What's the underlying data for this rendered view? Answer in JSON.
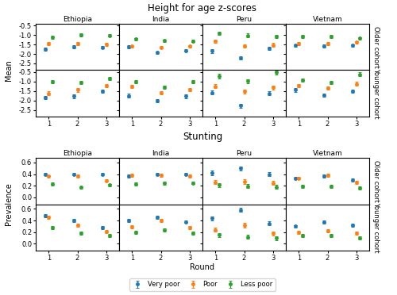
{
  "chart_data": [
    {
      "type": "errorbar",
      "title": "Height for age z-scores",
      "ylabel": "Mean",
      "x": [
        1,
        2,
        3
      ],
      "xlim": [
        0.55,
        3.45
      ],
      "xticks": [
        1,
        2,
        3
      ],
      "ylim": [
        -2.85,
        -0.4
      ],
      "yticks": [
        -2.5,
        {
          "value": -2.0,
          "label": "-2.0"
        },
        -1.5,
        {
          "value": -1.0,
          "label": "-1.0"
        },
        -0.5
      ],
      "grid": false,
      "columns": [
        "Ethiopia",
        "India",
        "Peru",
        "Vietnam"
      ],
      "rows": [
        "Older cohort",
        "Younger cohort"
      ],
      "panels": [
        {
          "row": "Older cohort",
          "column": "Ethiopia",
          "series": [
            {
              "name": "Very poor",
              "values": [
                -1.75,
                -1.62,
                -1.65
              ],
              "yerr": [
                0.07,
                0.07,
                0.07
              ]
            },
            {
              "name": "Poor",
              "values": [
                -1.45,
                -1.45,
                -1.5
              ],
              "yerr": [
                0.07,
                0.07,
                0.07
              ]
            },
            {
              "name": "Less poor",
              "values": [
                -1.12,
                -1.0,
                -1.02
              ],
              "yerr": [
                0.07,
                0.07,
                0.07
              ]
            }
          ]
        },
        {
          "row": "Older cohort",
          "column": "India",
          "series": [
            {
              "name": "Very poor",
              "values": [
                -1.62,
                -1.93,
                -1.82
              ],
              "yerr": [
                0.07,
                0.07,
                0.07
              ]
            },
            {
              "name": "Poor",
              "values": [
                -1.6,
                -1.65,
                -1.6
              ],
              "yerr": [
                0.07,
                0.07,
                0.07
              ]
            },
            {
              "name": "Less poor",
              "values": [
                -1.22,
                -1.3,
                -1.32
              ],
              "yerr": [
                0.07,
                0.07,
                0.07
              ]
            }
          ]
        },
        {
          "row": "Older cohort",
          "column": "Peru",
          "series": [
            {
              "name": "Very poor",
              "values": [
                -1.85,
                -2.22,
                -1.72
              ],
              "yerr": [
                0.09,
                0.09,
                0.09
              ]
            },
            {
              "name": "Poor",
              "values": [
                -1.32,
                -1.58,
                -1.52
              ],
              "yerr": [
                0.09,
                0.09,
                0.09
              ]
            },
            {
              "name": "Less poor",
              "values": [
                -0.92,
                -1.02,
                -1.08
              ],
              "yerr": [
                0.09,
                0.09,
                0.09
              ]
            }
          ]
        },
        {
          "row": "Older cohort",
          "column": "Vietnam",
          "series": [
            {
              "name": "Very poor",
              "values": [
                -1.55,
                -1.58,
                -1.55
              ],
              "yerr": [
                0.07,
                0.07,
                0.07
              ]
            },
            {
              "name": "Poor",
              "values": [
                -1.45,
                -1.45,
                -1.38
              ],
              "yerr": [
                0.07,
                0.07,
                0.07
              ]
            },
            {
              "name": "Less poor",
              "values": [
                -1.08,
                -1.08,
                -1.18
              ],
              "yerr": [
                0.07,
                0.07,
                0.07
              ]
            }
          ]
        },
        {
          "row": "Younger cohort",
          "column": "Ethiopia",
          "series": [
            {
              "name": "Very poor",
              "values": [
                -1.85,
                -1.78,
                -1.5
              ],
              "yerr": [
                0.09,
                0.09,
                0.09
              ]
            },
            {
              "name": "Poor",
              "values": [
                -1.62,
                -1.45,
                -1.22
              ],
              "yerr": [
                0.09,
                0.09,
                0.09
              ]
            },
            {
              "name": "Less poor",
              "values": [
                -1.02,
                -1.05,
                -0.85
              ],
              "yerr": [
                0.09,
                0.09,
                0.09
              ]
            }
          ]
        },
        {
          "row": "Younger cohort",
          "column": "India",
          "series": [
            {
              "name": "Very poor",
              "values": [
                -1.75,
                -2.02,
                -1.78
              ],
              "yerr": [
                0.09,
                0.09,
                0.09
              ]
            },
            {
              "name": "Poor",
              "values": [
                -1.25,
                -1.6,
                -1.42
              ],
              "yerr": [
                0.09,
                0.09,
                0.09
              ]
            },
            {
              "name": "Less poor",
              "values": [
                -1.02,
                -1.3,
                -1.02
              ],
              "yerr": [
                0.09,
                0.09,
                0.09
              ]
            }
          ]
        },
        {
          "row": "Younger cohort",
          "column": "Peru",
          "series": [
            {
              "name": "Very poor",
              "values": [
                -1.58,
                -2.28,
                -1.62
              ],
              "yerr": [
                0.11,
                0.11,
                0.11
              ]
            },
            {
              "name": "Poor",
              "values": [
                -1.25,
                -1.52,
                -1.32
              ],
              "yerr": [
                0.11,
                0.11,
                0.11
              ]
            },
            {
              "name": "Less poor",
              "values": [
                -0.72,
                -0.98,
                -0.52
              ],
              "yerr": [
                0.11,
                0.11,
                0.11
              ]
            }
          ]
        },
        {
          "row": "Younger cohort",
          "column": "Vietnam",
          "series": [
            {
              "name": "Very poor",
              "values": [
                -1.45,
                -1.72,
                -1.52
              ],
              "yerr": [
                0.09,
                0.09,
                0.09
              ]
            },
            {
              "name": "Poor",
              "values": [
                -1.22,
                -1.35,
                -1.12
              ],
              "yerr": [
                0.09,
                0.09,
                0.09
              ]
            },
            {
              "name": "Less poor",
              "values": [
                -0.92,
                -1.05,
                -0.62
              ],
              "yerr": [
                0.09,
                0.09,
                0.09
              ]
            }
          ]
        }
      ]
    },
    {
      "type": "errorbar",
      "title": "Stunting",
      "ylabel": "Prevalence",
      "xlabel": "Round",
      "x": [
        1,
        2,
        3
      ],
      "xlim": [
        0.55,
        3.45
      ],
      "xticks": [
        1,
        2,
        3
      ],
      "ylim": [
        -0.12,
        0.68
      ],
      "yticks": [
        {
          "value": 0.0,
          "label": "0.0"
        },
        0.2,
        0.4,
        0.6
      ],
      "grid": false,
      "legend": "lower center",
      "columns": [
        "Ethiopia",
        "India",
        "Peru",
        "Vietnam"
      ],
      "rows": [
        "Older cohort",
        "Younger cohort"
      ],
      "panels": [
        {
          "row": "Older cohort",
          "column": "Ethiopia",
          "series": [
            {
              "name": "Very poor",
              "values": [
                0.4,
                0.4,
                0.4
              ],
              "yerr": [
                0.025,
                0.025,
                0.025
              ]
            },
            {
              "name": "Poor",
              "values": [
                0.36,
                0.37,
                0.29
              ],
              "yerr": [
                0.025,
                0.025,
                0.025
              ]
            },
            {
              "name": "Less poor",
              "values": [
                0.23,
                0.17,
                0.21
              ],
              "yerr": [
                0.025,
                0.025,
                0.025
              ]
            }
          ]
        },
        {
          "row": "Older cohort",
          "column": "India",
          "series": [
            {
              "name": "Very poor",
              "values": [
                0.37,
                0.4,
                0.4
              ],
              "yerr": [
                0.025,
                0.025,
                0.025
              ]
            },
            {
              "name": "Poor",
              "values": [
                0.38,
                0.38,
                0.37
              ],
              "yerr": [
                0.025,
                0.025,
                0.025
              ]
            },
            {
              "name": "Less poor",
              "values": [
                0.23,
                0.24,
                0.25
              ],
              "yerr": [
                0.025,
                0.025,
                0.025
              ]
            }
          ]
        },
        {
          "row": "Older cohort",
          "column": "Peru",
          "series": [
            {
              "name": "Very poor",
              "values": [
                0.42,
                0.5,
                0.4
              ],
              "yerr": [
                0.035,
                0.035,
                0.035
              ]
            },
            {
              "name": "Poor",
              "values": [
                0.26,
                0.27,
                0.25
              ],
              "yerr": [
                0.035,
                0.035,
                0.035
              ]
            },
            {
              "name": "Less poor",
              "values": [
                0.21,
                0.19,
                0.18
              ],
              "yerr": [
                0.035,
                0.035,
                0.035
              ]
            }
          ]
        },
        {
          "row": "Older cohort",
          "column": "Vietnam",
          "series": [
            {
              "name": "Very poor",
              "values": [
                0.33,
                0.37,
                0.3
              ],
              "yerr": [
                0.025,
                0.025,
                0.025
              ]
            },
            {
              "name": "Poor",
              "values": [
                0.33,
                0.38,
                0.26
              ],
              "yerr": [
                0.025,
                0.025,
                0.025
              ]
            },
            {
              "name": "Less poor",
              "values": [
                0.19,
                0.19,
                0.16
              ],
              "yerr": [
                0.025,
                0.025,
                0.025
              ]
            }
          ]
        },
        {
          "row": "Younger cohort",
          "column": "Ethiopia",
          "series": [
            {
              "name": "Very poor",
              "values": [
                0.48,
                0.4,
                0.28
              ],
              "yerr": [
                0.025,
                0.025,
                0.025
              ]
            },
            {
              "name": "Poor",
              "values": [
                0.46,
                0.32,
                0.21
              ],
              "yerr": [
                0.025,
                0.025,
                0.025
              ]
            },
            {
              "name": "Less poor",
              "values": [
                0.28,
                0.18,
                0.14
              ],
              "yerr": [
                0.025,
                0.025,
                0.025
              ]
            }
          ]
        },
        {
          "row": "Younger cohort",
          "column": "India",
          "series": [
            {
              "name": "Very poor",
              "values": [
                0.4,
                0.46,
                0.38
              ],
              "yerr": [
                0.025,
                0.025,
                0.025
              ]
            },
            {
              "name": "Poor",
              "values": [
                0.29,
                0.4,
                0.28
              ],
              "yerr": [
                0.025,
                0.025,
                0.025
              ]
            },
            {
              "name": "Less poor",
              "values": [
                0.2,
                0.24,
                0.18
              ],
              "yerr": [
                0.025,
                0.025,
                0.025
              ]
            }
          ]
        },
        {
          "row": "Younger cohort",
          "column": "Peru",
          "series": [
            {
              "name": "Very poor",
              "values": [
                0.44,
                0.58,
                0.35
              ],
              "yerr": [
                0.035,
                0.035,
                0.035
              ]
            },
            {
              "name": "Poor",
              "values": [
                0.24,
                0.32,
                0.18
              ],
              "yerr": [
                0.035,
                0.035,
                0.035
              ]
            },
            {
              "name": "Less poor",
              "values": [
                0.15,
                0.12,
                0.1
              ],
              "yerr": [
                0.035,
                0.035,
                0.035
              ]
            }
          ]
        },
        {
          "row": "Younger cohort",
          "column": "Vietnam",
          "series": [
            {
              "name": "Very poor",
              "values": [
                0.3,
                0.37,
                0.32
              ],
              "yerr": [
                0.025,
                0.025,
                0.025
              ]
            },
            {
              "name": "Poor",
              "values": [
                0.2,
                0.22,
                0.18
              ],
              "yerr": [
                0.025,
                0.025,
                0.025
              ]
            },
            {
              "name": "Less poor",
              "values": [
                0.14,
                0.14,
                0.1
              ],
              "yerr": [
                0.025,
                0.025,
                0.025
              ]
            }
          ]
        }
      ]
    }
  ]
}
